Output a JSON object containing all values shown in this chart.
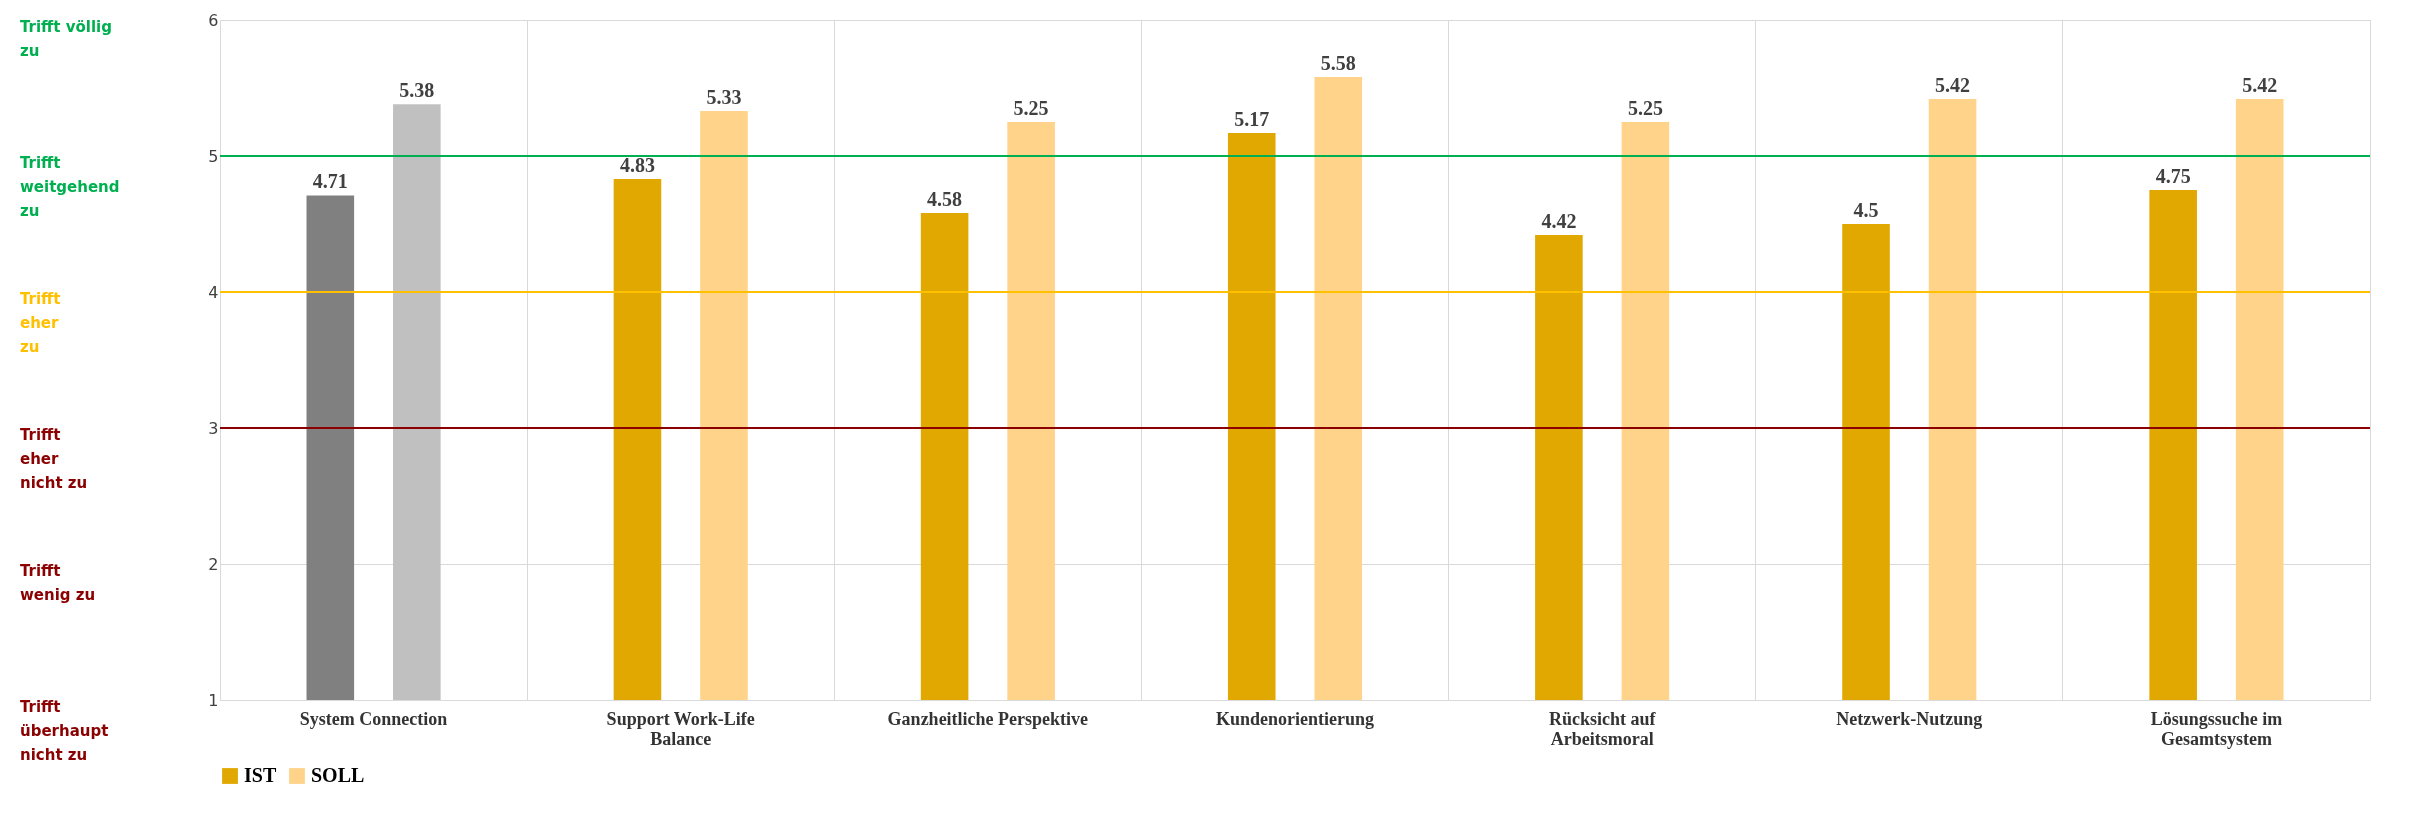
{
  "chart_data": {
    "type": "bar",
    "categories": [
      "System Connection",
      "Support Work-Life\nBalance",
      "Ganzheitliche Perspektive",
      "Kundenorientierung",
      "Rücksicht auf\nArbeitsmoral",
      "Netzwerk-Nutzung",
      "Lösungssuche im\nGesamtsystem"
    ],
    "series": [
      {
        "name": "IST",
        "color": "#e0a800",
        "colors": [
          "#808080",
          "#e0a800",
          "#e0a800",
          "#e0a800",
          "#e0a800",
          "#e0a800",
          "#e0a800"
        ],
        "values": [
          4.71,
          4.83,
          4.58,
          5.17,
          4.42,
          4.5,
          4.75
        ]
      },
      {
        "name": "SOLL",
        "color": "#ffd38a",
        "colors": [
          "#c0c0c0",
          "#ffd38a",
          "#ffd38a",
          "#ffd38a",
          "#ffd38a",
          "#ffd38a",
          "#ffd38a"
        ],
        "values": [
          5.38,
          5.33,
          5.25,
          5.58,
          5.25,
          5.42,
          5.42
        ]
      }
    ],
    "ylim": [
      1,
      6
    ],
    "yticks": [
      1,
      2,
      3,
      4,
      5,
      6
    ],
    "grid": true,
    "legend": "bottom",
    "data_labels": true,
    "ref_lines": [
      {
        "axis": "y",
        "value": 5,
        "color": "#00b050"
      },
      {
        "axis": "y",
        "value": 4,
        "color": "#ffc000"
      },
      {
        "axis": "y",
        "value": 3,
        "color": "#8b0000"
      }
    ],
    "annotations": [
      "Trifft völlig\nzu",
      "Trifft\nweitgehend\nzu",
      "Trifft\neher\nzu",
      "Trifft\neher\nnicht zu",
      "Trifft\nwenig zu",
      "Trifft\nüberhaupt\nnicht zu"
    ]
  }
}
